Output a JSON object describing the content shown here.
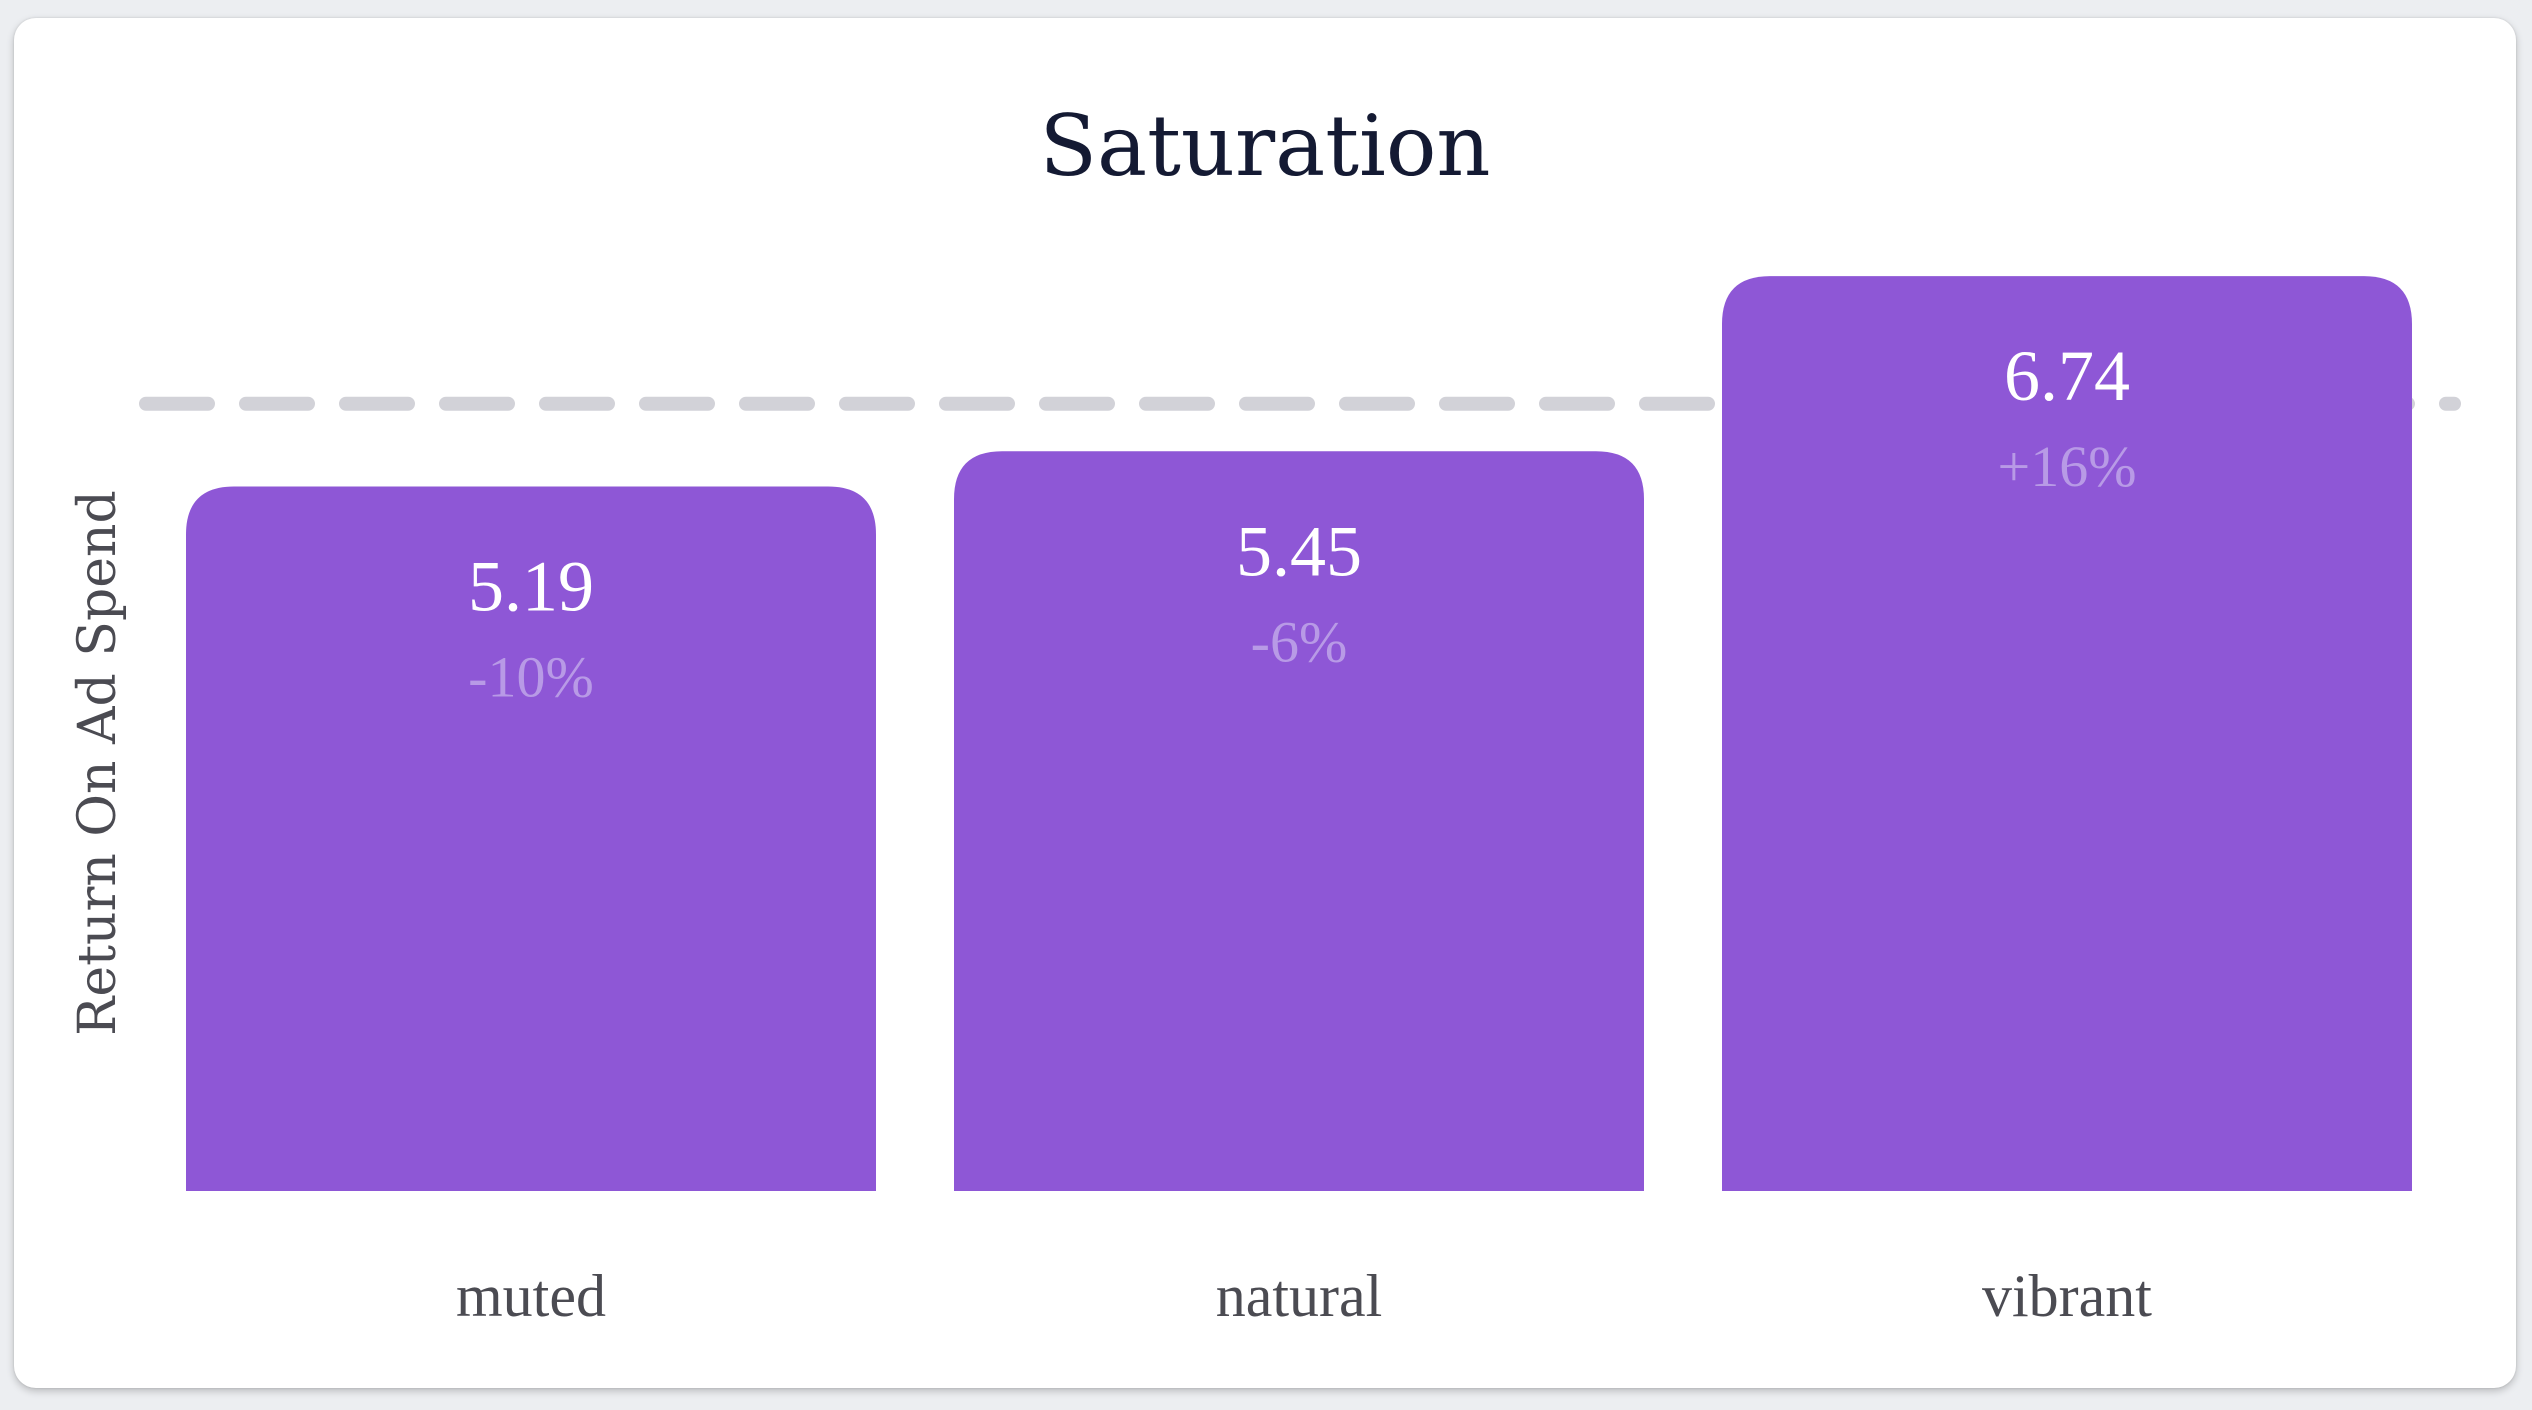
{
  "chart_data": {
    "type": "bar",
    "title": "Saturation",
    "ylabel": "Return On Ad Spend",
    "xlabel": "",
    "categories": [
      "muted",
      "natural",
      "vibrant"
    ],
    "values": [
      5.19,
      5.45,
      6.74
    ],
    "deltas": [
      "-10%",
      "-6%",
      "+16%"
    ],
    "value_labels": [
      "5.19",
      "5.45",
      "6.74"
    ],
    "reference_line": 5.8,
    "ylim": [
      0,
      7.5
    ],
    "grid": false,
    "legend": "none",
    "bar_color": "#8e57d6",
    "reference_line_color": "#d2d2d8",
    "delta_color": "#b89ae6"
  }
}
